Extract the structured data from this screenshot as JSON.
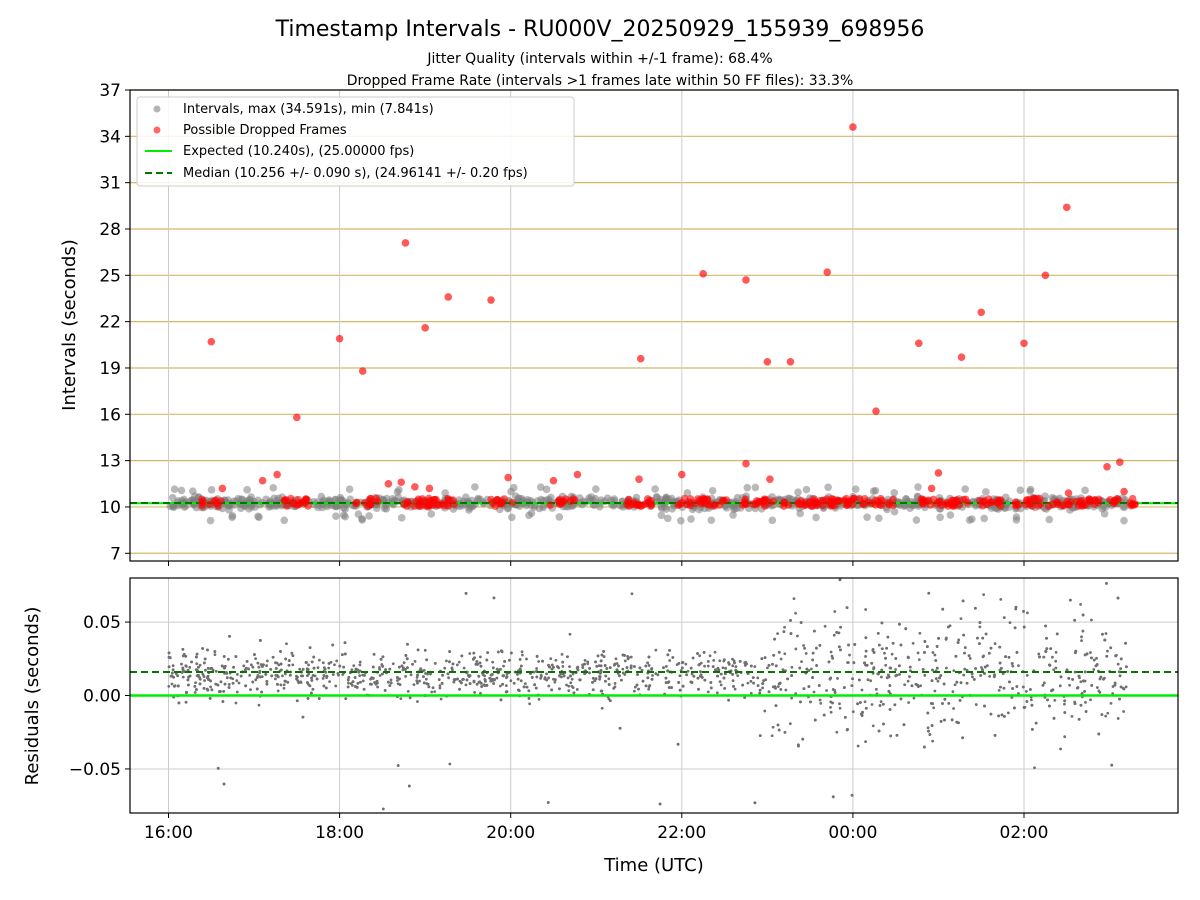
{
  "title": "Timestamp Intervals - RU000V_20250929_155939_698956",
  "subtitle_jitter": "Jitter Quality (intervals within +/-1 frame): 68.4%",
  "subtitle_dropped": "Dropped Frame Rate (intervals >1 frames late within 50 FF files): 33.3%",
  "colors": {
    "intervals": "#808080",
    "dropped": "#ff0000",
    "expected": "#00ee00",
    "median": "#007700",
    "hgrid": "#d4b86a",
    "vgrid": "#cccccc"
  },
  "chart_data": [
    {
      "type": "scatter",
      "title": "Timestamp Intervals - RU000V_20250929_155939_698956",
      "xlabel": "Time (UTC)",
      "ylabel": "Intervals (seconds)",
      "xlim_hours": [
        15.55,
        27.8
      ],
      "ylim": [
        6.5,
        37
      ],
      "yticks": [
        7,
        10,
        13,
        16,
        19,
        22,
        25,
        28,
        31,
        34,
        37
      ],
      "ytick_labels": [
        "7",
        "10",
        "13",
        "16",
        "19",
        "22",
        "25",
        "28",
        "31",
        "34",
        "37"
      ],
      "xticks_hours": [
        16,
        18,
        20,
        22,
        24,
        26
      ],
      "xtick_labels": [
        "16:00",
        "18:00",
        "20:00",
        "22:00",
        "00:00",
        "02:00"
      ],
      "legend_position": "top-left",
      "legend": [
        "Intervals, max (34.591s), min (7.841s)",
        "Possible Dropped Frames",
        "Expected (10.240s), (25.00000 fps)",
        "Median (10.256 +/- 0.090 s), (24.96141 +/- 0.20 fps)"
      ],
      "expected_interval": 10.24,
      "median_interval": 10.256,
      "max_interval": 34.591,
      "min_interval": 7.841,
      "series": [
        {
          "name": "Possible Dropped Frames",
          "points": [
            [
              16.5,
              20.7
            ],
            [
              16.63,
              11.2
            ],
            [
              17.1,
              11.7
            ],
            [
              17.27,
              12.1
            ],
            [
              17.5,
              15.8
            ],
            [
              18.0,
              20.9
            ],
            [
              18.27,
              18.8
            ],
            [
              18.57,
              11.5
            ],
            [
              18.72,
              11.6
            ],
            [
              18.77,
              27.1
            ],
            [
              18.88,
              11.3
            ],
            [
              19.0,
              21.6
            ],
            [
              19.05,
              11.2
            ],
            [
              19.27,
              23.6
            ],
            [
              19.77,
              23.4
            ],
            [
              19.97,
              11.9
            ],
            [
              20.5,
              11.7
            ],
            [
              20.78,
              12.1
            ],
            [
              21.5,
              11.8
            ],
            [
              21.52,
              19.6
            ],
            [
              22.0,
              12.1
            ],
            [
              22.25,
              25.1
            ],
            [
              22.75,
              24.7
            ],
            [
              22.75,
              12.8
            ],
            [
              23.0,
              19.4
            ],
            [
              23.03,
              11.8
            ],
            [
              23.27,
              19.4
            ],
            [
              23.7,
              25.2
            ],
            [
              24.0,
              34.6
            ],
            [
              24.27,
              16.2
            ],
            [
              24.77,
              20.6
            ],
            [
              24.92,
              11.2
            ],
            [
              25.0,
              12.2
            ],
            [
              25.27,
              19.7
            ],
            [
              25.5,
              22.6
            ],
            [
              26.0,
              20.6
            ],
            [
              26.25,
              25.0
            ],
            [
              26.5,
              29.4
            ],
            [
              26.52,
              10.9
            ],
            [
              26.97,
              12.6
            ],
            [
              27.12,
              12.9
            ],
            [
              27.17,
              11.0
            ]
          ]
        }
      ]
    },
    {
      "type": "scatter",
      "xlabel": "Time (UTC)",
      "ylabel": "Residuals (seconds)",
      "ylim": [
        -0.08,
        0.08
      ],
      "yticks": [
        -0.05,
        0.0,
        0.05
      ],
      "ytick_labels": [
        "−0.05",
        "0.00",
        "0.05"
      ],
      "xticks_hours": [
        16,
        18,
        20,
        22,
        24,
        26
      ],
      "xtick_labels": [
        "16:00",
        "18:00",
        "20:00",
        "22:00",
        "00:00",
        "02:00"
      ],
      "expected_residual": 0.0,
      "median_residual": 0.016
    }
  ]
}
